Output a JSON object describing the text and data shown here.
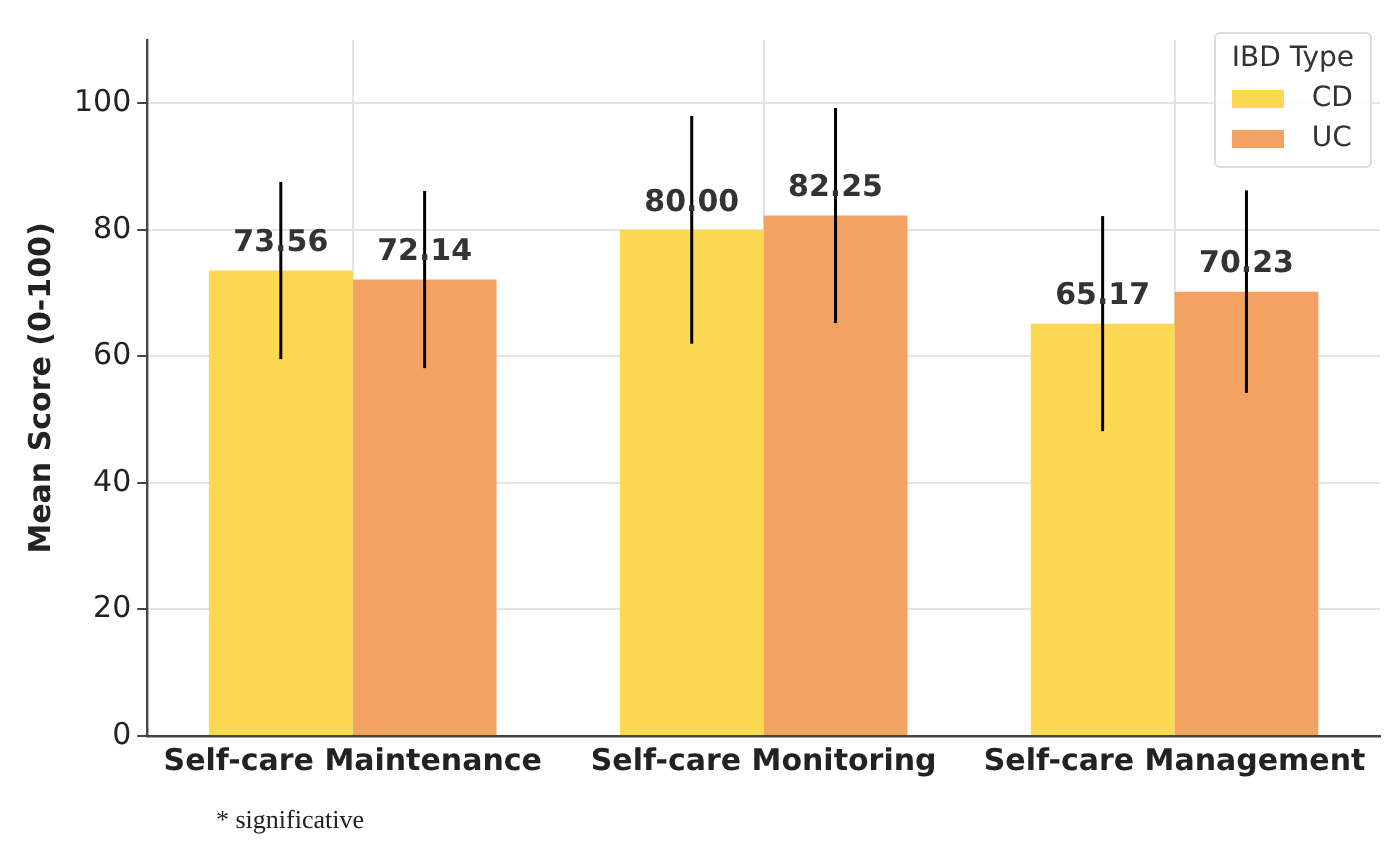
{
  "chart_data": {
    "type": "bar",
    "ylabel": "Mean Score (0-100)",
    "legend_title": "IBD Type",
    "categories": [
      "Self-care Maintenance",
      "Self-care Monitoring",
      "Self-care Management"
    ],
    "series": [
      {
        "name": "CD",
        "color": "#fdd853",
        "values": [
          73.56,
          80.0,
          65.17
        ],
        "value_labels": [
          "73.56",
          "80.00",
          "65.17"
        ],
        "errors": [
          14,
          18,
          17
        ]
      },
      {
        "name": "UC",
        "color": "#f2a361",
        "values": [
          72.14,
          82.25,
          70.23
        ],
        "value_labels": [
          "72.14",
          "82.25",
          "70.23"
        ],
        "errors": [
          14,
          17,
          16
        ]
      }
    ],
    "ylim": [
      0,
      110
    ],
    "yticks": [
      0,
      20,
      40,
      60,
      80,
      100
    ],
    "grid": true,
    "legend": "top right",
    "annotations": [
      "* significative"
    ]
  }
}
